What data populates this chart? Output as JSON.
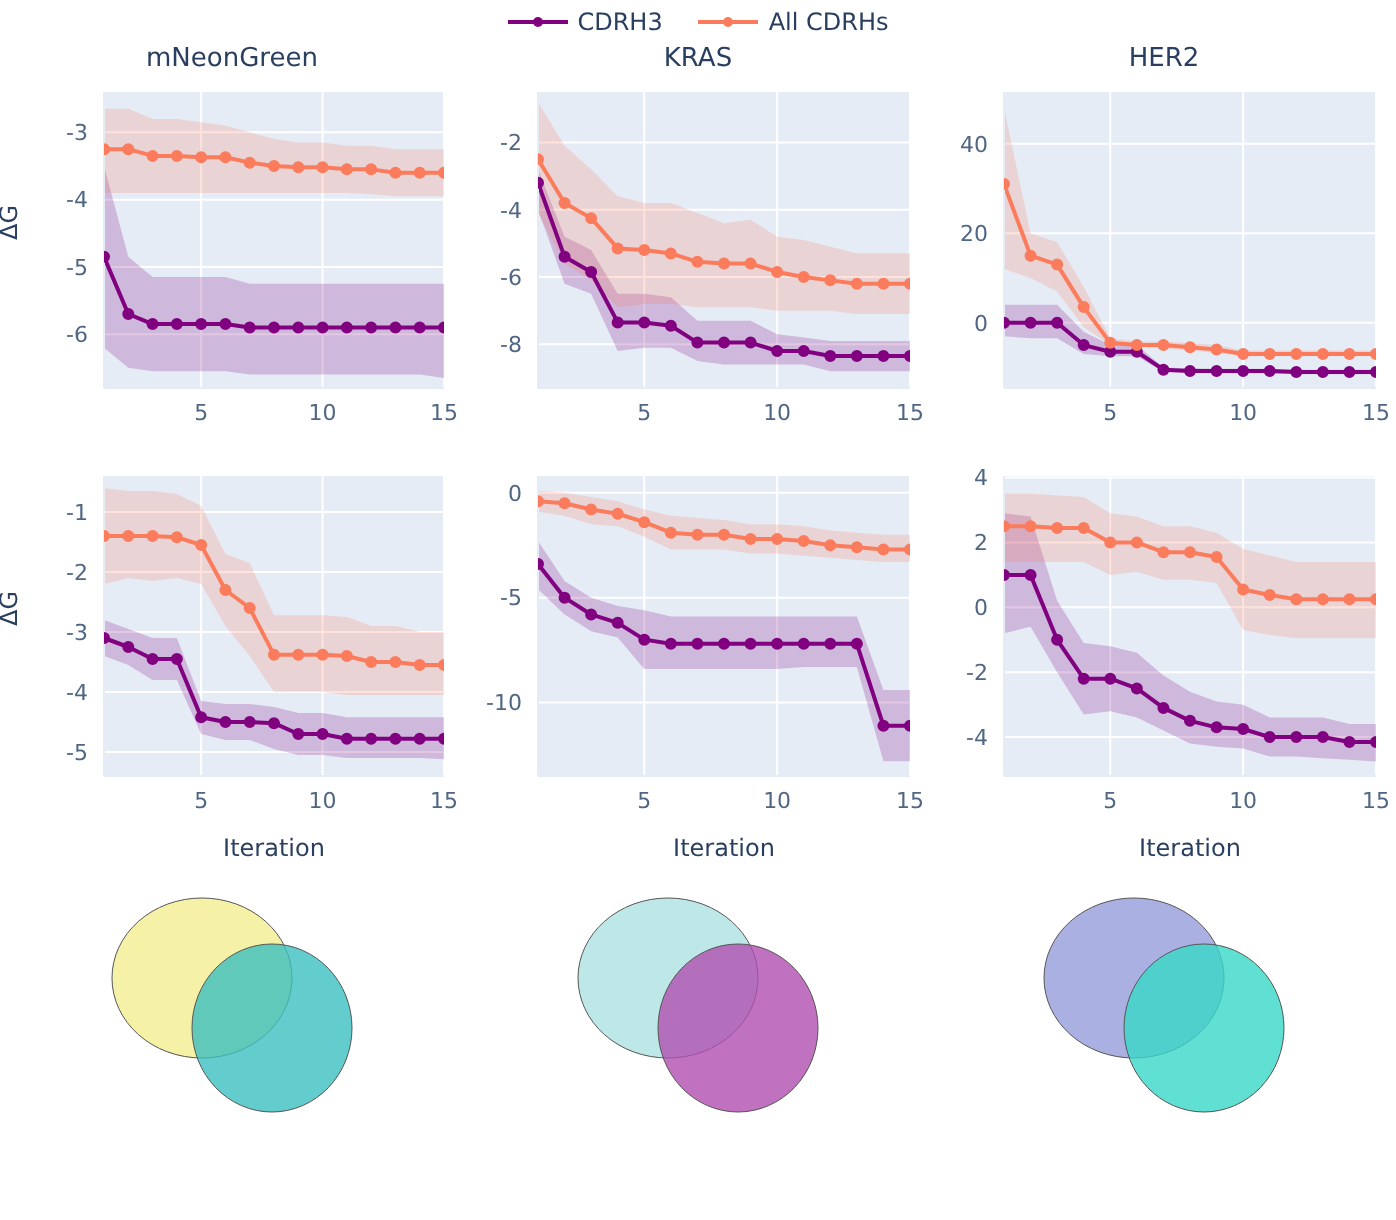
{
  "chart_data": [
    {
      "type": "line",
      "title": "mNeonGreen",
      "ylabel": "ΔG",
      "x": [
        1,
        2,
        3,
        4,
        5,
        6,
        7,
        8,
        9,
        10,
        11,
        12,
        13,
        14,
        15
      ],
      "xlim": [
        1,
        15
      ],
      "xticks": [
        5,
        10,
        15
      ],
      "ylim": [
        -6.8,
        -2.4
      ],
      "yticks": [
        -6,
        -5,
        -4,
        -3
      ],
      "grid": true,
      "marker": "circle",
      "legend": "top",
      "series": [
        {
          "name": "CDRH3",
          "color": "#800080",
          "values": [
            -4.85,
            -5.7,
            -5.85,
            -5.85,
            -5.85,
            -5.85,
            -5.9,
            -5.9,
            -5.9,
            -5.9,
            -5.9,
            -5.9,
            -5.9,
            -5.9,
            -5.9
          ],
          "lower": [
            -6.2,
            -6.5,
            -6.55,
            -6.55,
            -6.55,
            -6.55,
            -6.6,
            -6.6,
            -6.6,
            -6.6,
            -6.6,
            -6.6,
            -6.6,
            -6.6,
            -6.65
          ],
          "upper": [
            -3.5,
            -4.85,
            -5.15,
            -5.15,
            -5.15,
            -5.15,
            -5.25,
            -5.25,
            -5.25,
            -5.25,
            -5.25,
            -5.25,
            -5.25,
            -5.25,
            -5.25
          ]
        },
        {
          "name": "All CDRHs",
          "color": "#fb7c5c",
          "values": [
            -3.25,
            -3.25,
            -3.35,
            -3.35,
            -3.37,
            -3.37,
            -3.45,
            -3.5,
            -3.52,
            -3.52,
            -3.55,
            -3.55,
            -3.6,
            -3.6,
            -3.6
          ],
          "lower": [
            -3.9,
            -3.9,
            -3.9,
            -3.9,
            -3.9,
            -3.9,
            -3.9,
            -3.9,
            -3.9,
            -3.9,
            -3.9,
            -3.92,
            -3.95,
            -3.95,
            -3.95
          ],
          "upper": [
            -2.65,
            -2.65,
            -2.8,
            -2.8,
            -2.85,
            -2.9,
            -3.0,
            -3.1,
            -3.15,
            -3.15,
            -3.2,
            -3.2,
            -3.25,
            -3.25,
            -3.25
          ]
        }
      ]
    },
    {
      "type": "line",
      "title": "KRAS",
      "x": [
        1,
        2,
        3,
        4,
        5,
        6,
        7,
        8,
        9,
        10,
        11,
        12,
        13,
        14,
        15
      ],
      "xlim": [
        1,
        15
      ],
      "xticks": [
        5,
        10,
        15
      ],
      "ylim": [
        -9.3,
        -0.5
      ],
      "yticks": [
        -8,
        -6,
        -4,
        -2
      ],
      "grid": true,
      "marker": "circle",
      "series": [
        {
          "color": "#800080",
          "values": [
            -3.2,
            -5.4,
            -5.85,
            -7.35,
            -7.35,
            -7.45,
            -7.95,
            -7.95,
            -7.95,
            -8.2,
            -8.2,
            -8.35,
            -8.35,
            -8.35,
            -8.35
          ],
          "lower": [
            -4.0,
            -6.2,
            -6.5,
            -8.2,
            -8.1,
            -8.1,
            -8.5,
            -8.6,
            -8.6,
            -8.6,
            -8.6,
            -8.8,
            -8.8,
            -8.8,
            -8.8
          ],
          "upper": [
            -2.8,
            -4.8,
            -5.2,
            -6.5,
            -6.5,
            -6.6,
            -7.3,
            -7.3,
            -7.3,
            -7.7,
            -7.8,
            -7.9,
            -7.9,
            -7.9,
            -7.9
          ]
        },
        {
          "color": "#fb7c5c",
          "values": [
            -2.5,
            -3.8,
            -4.25,
            -5.15,
            -5.2,
            -5.3,
            -5.55,
            -5.6,
            -5.6,
            -5.85,
            -6.0,
            -6.1,
            -6.2,
            -6.2,
            -6.2
          ],
          "lower": [
            -4.1,
            -5.6,
            -6.1,
            -6.9,
            -6.8,
            -6.8,
            -6.9,
            -6.9,
            -6.9,
            -7.0,
            -7.0,
            -7.0,
            -7.1,
            -7.1,
            -7.1
          ],
          "upper": [
            -0.8,
            -2.1,
            -2.8,
            -3.6,
            -3.8,
            -3.8,
            -4.1,
            -4.4,
            -4.3,
            -4.8,
            -4.9,
            -5.1,
            -5.3,
            -5.3,
            -5.3
          ]
        }
      ]
    },
    {
      "type": "line",
      "title": "HER2",
      "x": [
        1,
        2,
        3,
        4,
        5,
        6,
        7,
        8,
        9,
        10,
        11,
        12,
        13,
        14,
        15
      ],
      "xlim": [
        1,
        15
      ],
      "xticks": [
        5,
        10,
        15
      ],
      "ylim": [
        -14.6,
        51.6
      ],
      "yticks": [
        0,
        20,
        40
      ],
      "grid": true,
      "marker": "circle",
      "series": [
        {
          "color": "#800080",
          "values": [
            0,
            0,
            0,
            -5,
            -6.5,
            -6.5,
            -10.5,
            -10.8,
            -10.8,
            -10.8,
            -10.8,
            -11,
            -11,
            -11,
            -11
          ],
          "lower": [
            -3,
            -3.5,
            -3.5,
            -7,
            -7.5,
            -7.5,
            -11,
            -11.2,
            -11.3,
            -11.3,
            -11.3,
            -11.5,
            -11.5,
            -11.5,
            -11.5
          ],
          "upper": [
            4,
            4,
            4,
            -2,
            -5,
            -5,
            -10,
            -10.2,
            -10.3,
            -10.3,
            -10.3,
            -10.5,
            -10.5,
            -10.5,
            -10.5
          ]
        },
        {
          "color": "#fb7c5c",
          "values": [
            31,
            15,
            13,
            3.5,
            -4.5,
            -5,
            -5,
            -5.5,
            -6,
            -7,
            -7,
            -7,
            -7,
            -7,
            -7
          ],
          "lower": [
            12,
            10,
            7,
            -1,
            -5,
            -5.5,
            -5.8,
            -6.2,
            -6.8,
            -7.5,
            -7.5,
            -7.5,
            -7.5,
            -7.5,
            -7.5
          ],
          "upper": [
            48,
            20,
            18,
            8,
            -3.5,
            -4.2,
            -4.2,
            -4.6,
            -5,
            -6.2,
            -6.2,
            -6.2,
            -6.2,
            -6.2,
            -6.2
          ]
        }
      ]
    },
    {
      "type": "line",
      "xlabel": "Iteration",
      "ylabel": "ΔG",
      "x": [
        1,
        2,
        3,
        4,
        5,
        6,
        7,
        8,
        9,
        10,
        11,
        12,
        13,
        14,
        15
      ],
      "xlim": [
        1,
        15
      ],
      "xticks": [
        5,
        10,
        15
      ],
      "ylim": [
        -5.4,
        -0.4
      ],
      "yticks": [
        -5,
        -4,
        -3,
        -2,
        -1
      ],
      "grid": true,
      "marker": "circle",
      "series": [
        {
          "color": "#800080",
          "values": [
            -3.1,
            -3.25,
            -3.45,
            -3.45,
            -4.42,
            -4.5,
            -4.5,
            -4.52,
            -4.7,
            -4.7,
            -4.78,
            -4.78,
            -4.78,
            -4.78,
            -4.78
          ],
          "lower": [
            -3.4,
            -3.55,
            -3.8,
            -3.8,
            -4.7,
            -4.8,
            -4.8,
            -4.95,
            -5.05,
            -5.05,
            -5.1,
            -5.1,
            -5.1,
            -5.1,
            -5.12
          ],
          "upper": [
            -2.8,
            -2.95,
            -3.1,
            -3.1,
            -4.15,
            -4.2,
            -4.2,
            -4.25,
            -4.35,
            -4.35,
            -4.42,
            -4.42,
            -4.42,
            -4.42,
            -4.42
          ]
        },
        {
          "color": "#fb7c5c",
          "values": [
            -1.4,
            -1.4,
            -1.4,
            -1.42,
            -1.55,
            -2.3,
            -2.6,
            -3.38,
            -3.38,
            -3.38,
            -3.4,
            -3.5,
            -3.5,
            -3.55,
            -3.55
          ],
          "lower": [
            -2.2,
            -2.1,
            -2.15,
            -2.1,
            -2.2,
            -2.9,
            -3.4,
            -4.0,
            -4.0,
            -4.0,
            -4.05,
            -4.05,
            -4.05,
            -4.05,
            -4.05
          ],
          "upper": [
            -0.6,
            -0.65,
            -0.65,
            -0.7,
            -0.9,
            -1.7,
            -1.85,
            -2.72,
            -2.72,
            -2.72,
            -2.75,
            -2.9,
            -2.9,
            -3.0,
            -3.0
          ]
        }
      ]
    },
    {
      "type": "line",
      "xlabel": "Iteration",
      "x": [
        1,
        2,
        3,
        4,
        5,
        6,
        7,
        8,
        9,
        10,
        11,
        12,
        13,
        14,
        15
      ],
      "xlim": [
        1,
        15
      ],
      "xticks": [
        5,
        10,
        15
      ],
      "ylim": [
        -13.5,
        0.8
      ],
      "yticks": [
        -10,
        -5,
        0
      ],
      "grid": true,
      "marker": "circle",
      "series": [
        {
          "color": "#800080",
          "values": [
            -3.4,
            -5.0,
            -5.8,
            -6.2,
            -7.0,
            -7.2,
            -7.2,
            -7.2,
            -7.2,
            -7.2,
            -7.2,
            -7.2,
            -7.2,
            -11.1,
            -11.1
          ],
          "lower": [
            -4.6,
            -5.8,
            -6.6,
            -6.9,
            -8.4,
            -8.4,
            -8.4,
            -8.4,
            -8.4,
            -8.4,
            -8.3,
            -8.3,
            -8.3,
            -12.8,
            -12.8
          ],
          "upper": [
            -2.3,
            -4.2,
            -5.0,
            -5.4,
            -5.6,
            -5.9,
            -5.9,
            -5.9,
            -5.9,
            -5.9,
            -5.9,
            -5.9,
            -5.9,
            -9.4,
            -9.4
          ]
        },
        {
          "color": "#fb7c5c",
          "values": [
            -0.4,
            -0.5,
            -0.8,
            -1.0,
            -1.4,
            -1.9,
            -2.0,
            -2.0,
            -2.2,
            -2.2,
            -2.3,
            -2.5,
            -2.6,
            -2.7,
            -2.7
          ],
          "lower": [
            -0.9,
            -1.1,
            -1.5,
            -1.6,
            -2.1,
            -2.7,
            -2.7,
            -2.7,
            -2.9,
            -2.9,
            -3.0,
            -3.1,
            -3.2,
            -3.3,
            -3.3
          ],
          "upper": [
            0.1,
            0.0,
            -0.2,
            -0.4,
            -0.8,
            -1.1,
            -1.2,
            -1.3,
            -1.5,
            -1.5,
            -1.6,
            -1.8,
            -1.9,
            -2.0,
            -2.0
          ]
        }
      ]
    },
    {
      "type": "line",
      "xlabel": "Iteration",
      "x": [
        1,
        2,
        3,
        4,
        5,
        6,
        7,
        8,
        9,
        10,
        11,
        12,
        13,
        14,
        15
      ],
      "xlim": [
        1,
        15
      ],
      "xticks": [
        5,
        10,
        15
      ],
      "ylim": [
        -5.2,
        4.05
      ],
      "yticks": [
        -4,
        -2,
        0,
        2,
        4
      ],
      "grid": true,
      "marker": "circle",
      "series": [
        {
          "color": "#800080",
          "values": [
            1.0,
            1.0,
            -1.0,
            -2.2,
            -2.2,
            -2.5,
            -3.1,
            -3.5,
            -3.7,
            -3.75,
            -4.0,
            -4.0,
            -4.0,
            -4.15,
            -4.15
          ],
          "lower": [
            -0.8,
            -0.6,
            -2.0,
            -3.3,
            -3.2,
            -3.4,
            -3.8,
            -4.2,
            -4.3,
            -4.35,
            -4.6,
            -4.6,
            -4.65,
            -4.7,
            -4.75
          ],
          "upper": [
            2.9,
            2.8,
            0.2,
            -1.1,
            -1.2,
            -1.4,
            -2.1,
            -2.6,
            -2.9,
            -3.0,
            -3.4,
            -3.4,
            -3.4,
            -3.6,
            -3.6
          ]
        },
        {
          "color": "#fb7c5c",
          "values": [
            2.5,
            2.5,
            2.45,
            2.45,
            2.0,
            2.0,
            1.7,
            1.7,
            1.55,
            0.55,
            0.38,
            0.25,
            0.25,
            0.25,
            0.25
          ],
          "lower": [
            1.4,
            1.4,
            1.4,
            1.4,
            1.0,
            1.1,
            0.85,
            0.85,
            0.75,
            -0.7,
            -0.85,
            -0.95,
            -0.95,
            -0.95,
            -0.95
          ],
          "upper": [
            3.5,
            3.5,
            3.45,
            3.4,
            2.9,
            2.8,
            2.5,
            2.5,
            2.3,
            1.8,
            1.6,
            1.4,
            1.4,
            1.4,
            1.4
          ]
        }
      ]
    }
  ]
}
